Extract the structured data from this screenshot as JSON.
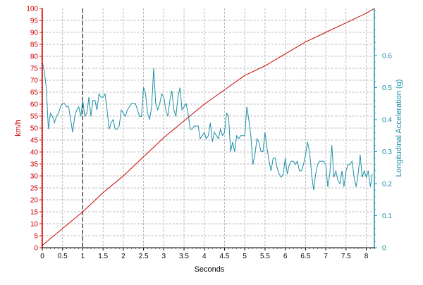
{
  "colors": {
    "speed": "#cc0000",
    "accel": "#1f8fa8",
    "grid": "#a8a8a8",
    "marker": "#000000",
    "text": "#000000",
    "background": "#ffffff"
  },
  "chart_data": {
    "type": "line",
    "title": "",
    "xlabel": "Seconds",
    "ylabel_left": "km/h",
    "ylabel_right": "Longitudinal Acceleration (g)",
    "xlim": [
      0,
      8.2
    ],
    "ylim_left": [
      0,
      100
    ],
    "ylim_right": [
      0,
      0.747
    ],
    "grid": true,
    "legend": "none",
    "x_ticks": [
      "0",
      "0.5",
      "1",
      "1.5",
      "2",
      "2.5",
      "3",
      "3.5",
      "4",
      "4.5",
      "5",
      "5.5",
      "6",
      "6.5",
      "7",
      "7.5",
      "8"
    ],
    "y_left_ticks": [
      "0",
      "5",
      "10",
      "15",
      "20",
      "25",
      "30",
      "35",
      "40",
      "45",
      "50",
      "55",
      "60",
      "65",
      "70",
      "75",
      "80",
      "85",
      "90",
      "95",
      "100"
    ],
    "y_right_ticks": [
      "0",
      "0.1",
      "0.2",
      "0.3",
      "0.4",
      "0.5",
      "0.6"
    ],
    "marker_x": 1.0,
    "series": [
      {
        "axis": "left",
        "x": [
          0,
          0.5,
          1.0,
          1.5,
          2.0,
          2.5,
          3.0,
          3.5,
          4.0,
          4.5,
          5.0,
          5.5,
          6.0,
          6.5,
          7.0,
          7.5,
          8.0,
          8.2
        ],
        "values": [
          1,
          8,
          15,
          23,
          30,
          38,
          46,
          53,
          60,
          66,
          72,
          76,
          81,
          86,
          90,
          94,
          98,
          100
        ]
      },
      {
        "axis": "right",
        "x": [
          0,
          0.05,
          0.1,
          0.15,
          0.2,
          0.25,
          0.3,
          0.35,
          0.4,
          0.45,
          0.5,
          0.55,
          0.6,
          0.65,
          0.7,
          0.75,
          0.8,
          0.85,
          0.9,
          0.95,
          1.0,
          1.05,
          1.1,
          1.15,
          1.2,
          1.25,
          1.3,
          1.35,
          1.4,
          1.45,
          1.5,
          1.55,
          1.6,
          1.65,
          1.7,
          1.75,
          1.8,
          1.85,
          1.9,
          1.95,
          2.0,
          2.05,
          2.1,
          2.15,
          2.2,
          2.25,
          2.3,
          2.35,
          2.4,
          2.45,
          2.5,
          2.55,
          2.6,
          2.65,
          2.7,
          2.75,
          2.8,
          2.85,
          2.9,
          2.95,
          3.0,
          3.05,
          3.1,
          3.15,
          3.2,
          3.25,
          3.3,
          3.35,
          3.4,
          3.45,
          3.5,
          3.55,
          3.6,
          3.65,
          3.7,
          3.75,
          3.8,
          3.85,
          3.9,
          3.95,
          4.0,
          4.05,
          4.1,
          4.15,
          4.2,
          4.25,
          4.3,
          4.35,
          4.4,
          4.45,
          4.5,
          4.55,
          4.6,
          4.65,
          4.7,
          4.75,
          4.8,
          4.85,
          4.9,
          4.95,
          5.0,
          5.05,
          5.1,
          5.15,
          5.2,
          5.25,
          5.3,
          5.35,
          5.4,
          5.45,
          5.5,
          5.55,
          5.6,
          5.65,
          5.7,
          5.75,
          5.8,
          5.85,
          5.9,
          5.95,
          6.0,
          6.05,
          6.1,
          6.15,
          6.2,
          6.25,
          6.3,
          6.35,
          6.4,
          6.45,
          6.5,
          6.55,
          6.6,
          6.65,
          6.7,
          6.75,
          6.8,
          6.85,
          6.9,
          6.95,
          7.0,
          7.05,
          7.1,
          7.15,
          7.2,
          7.25,
          7.3,
          7.35,
          7.4,
          7.45,
          7.5,
          7.55,
          7.6,
          7.65,
          7.7,
          7.75,
          7.8,
          7.85,
          7.9,
          7.95,
          8.0,
          8.05,
          8.1,
          8.15
        ],
        "values": [
          0.58,
          0.55,
          0.5,
          0.37,
          0.42,
          0.41,
          0.39,
          0.41,
          0.42,
          0.44,
          0.45,
          0.45,
          0.44,
          0.44,
          0.4,
          0.36,
          0.41,
          0.43,
          0.44,
          0.41,
          0.46,
          0.41,
          0.42,
          0.47,
          0.41,
          0.46,
          0.46,
          0.43,
          0.48,
          0.47,
          0.47,
          0.48,
          0.43,
          0.37,
          0.39,
          0.4,
          0.37,
          0.37,
          0.38,
          0.43,
          0.42,
          0.41,
          0.43,
          0.44,
          0.45,
          0.45,
          0.45,
          0.43,
          0.41,
          0.41,
          0.5,
          0.48,
          0.42,
          0.4,
          0.44,
          0.56,
          0.45,
          0.43,
          0.45,
          0.48,
          0.47,
          0.43,
          0.41,
          0.46,
          0.49,
          0.43,
          0.41,
          0.47,
          0.5,
          0.43,
          0.44,
          0.45,
          0.42,
          0.37,
          0.37,
          0.38,
          0.38,
          0.38,
          0.34,
          0.35,
          0.36,
          0.34,
          0.35,
          0.39,
          0.33,
          0.36,
          0.35,
          0.34,
          0.37,
          0.35,
          0.36,
          0.42,
          0.41,
          0.3,
          0.33,
          0.3,
          0.35,
          0.34,
          0.35,
          0.35,
          0.35,
          0.44,
          0.4,
          0.35,
          0.26,
          0.29,
          0.34,
          0.33,
          0.3,
          0.3,
          0.36,
          0.31,
          0.27,
          0.24,
          0.28,
          0.28,
          0.25,
          0.23,
          0.22,
          0.23,
          0.28,
          0.23,
          0.26,
          0.27,
          0.27,
          0.26,
          0.27,
          0.24,
          0.24,
          0.26,
          0.29,
          0.33,
          0.3,
          0.23,
          0.18,
          0.23,
          0.26,
          0.27,
          0.27,
          0.27,
          0.26,
          0.19,
          0.23,
          0.32,
          0.22,
          0.24,
          0.21,
          0.2,
          0.24,
          0.19,
          0.24,
          0.26,
          0.26,
          0.27,
          0.22,
          0.19,
          0.23,
          0.29,
          0.22,
          0.24,
          0.22,
          0.24,
          0.19,
          0.23
        ]
      }
    ]
  }
}
